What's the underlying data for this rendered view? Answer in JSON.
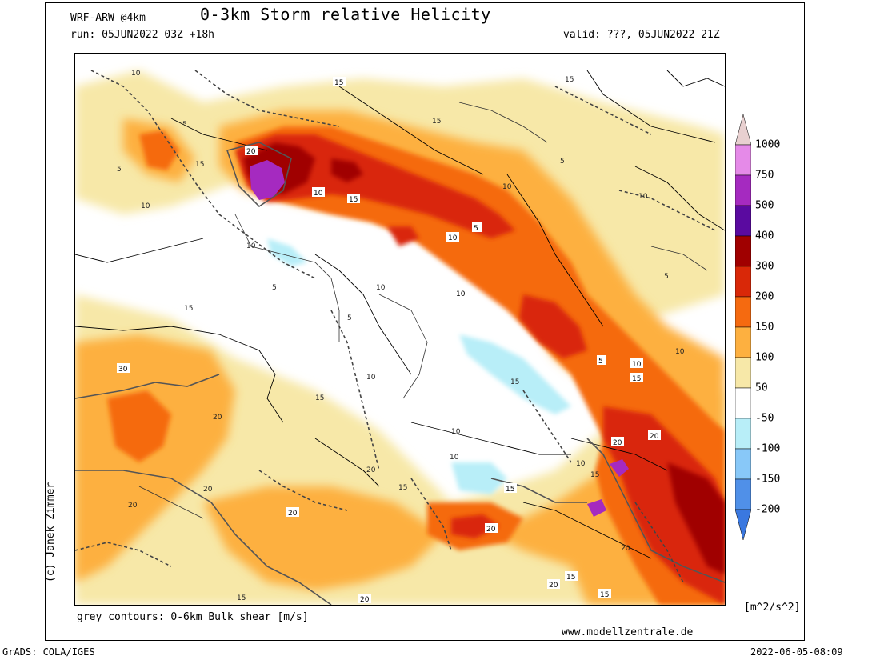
{
  "header": {
    "model": "WRF-ARW @4km",
    "title": "0-3km Storm relative Helicity",
    "run": "run: 05JUN2022 03Z +18h",
    "valid": "valid: ???, 05JUN2022 21Z"
  },
  "footer": {
    "credit": "(c) Janek Zimmer",
    "subtitle": "grey contours: 0-6km Bulk shear [m/s]",
    "website": "www.modellzentrale.de",
    "grads": "GrADS: COLA/IGES",
    "timestamp": "2022-06-05-08:09"
  },
  "legend": {
    "units": "[m^2/s^2]",
    "levels": [
      {
        "label": "1000",
        "color": "#e8d0d0"
      },
      {
        "label": "750",
        "color": "#e58ae8"
      },
      {
        "label": "500",
        "color": "#a52ac0"
      },
      {
        "label": "400",
        "color": "#5a0aa0"
      },
      {
        "label": "300",
        "color": "#a00000"
      },
      {
        "label": "200",
        "color": "#d92808"
      },
      {
        "label": "150",
        "color": "#f56a10"
      },
      {
        "label": "100",
        "color": "#fdb040"
      },
      {
        "label": "50",
        "color": "#f7e8a8"
      },
      {
        "label": "-50",
        "color": "#ffffff"
      },
      {
        "label": "-100",
        "color": "#b8eef8"
      },
      {
        "label": "-150",
        "color": "#88c8f8"
      },
      {
        "label": "-200",
        "color": "#5090e8"
      }
    ],
    "bottom_color": "#3a78e0"
  },
  "contour_labels": [
    "5",
    "10",
    "15",
    "20",
    "30"
  ]
}
